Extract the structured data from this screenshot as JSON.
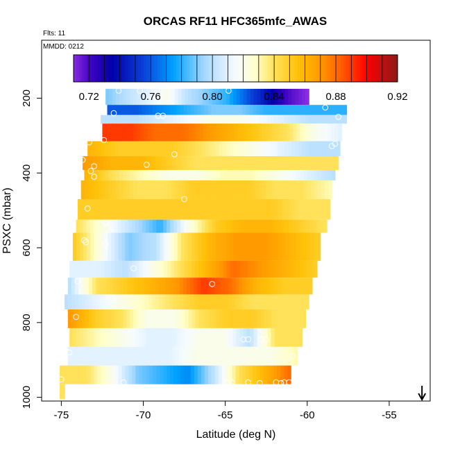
{
  "chart_data": {
    "type": "heatmap",
    "title": "ORCAS RF11 HFC365mfc_AWAS",
    "subtitle": "Flts: 11",
    "annotation": "MMDD: 0212",
    "xlabel": "Latitude (deg N)",
    "ylabel": "PSXC (mbar)",
    "xlim": [
      -76.2,
      -52.5
    ],
    "ylim": [
      1010,
      45
    ],
    "y_reversed": true,
    "x_ticks": [
      -75,
      -70,
      -65,
      -60,
      -55
    ],
    "x_tick_labels": [
      "-75",
      "-70",
      "-65",
      "-60",
      "-55"
    ],
    "y_ticks": [
      200,
      400,
      600,
      800,
      1000
    ],
    "y_tick_labels": [
      "200",
      "400",
      "600",
      "800",
      "1000"
    ],
    "colorbar": {
      "range": [
        0.71,
        0.92
      ],
      "ticks": [
        0.72,
        0.76,
        0.8,
        0.84,
        0.88,
        0.92
      ],
      "tick_labels": [
        "0.72",
        "0.76",
        "0.80",
        "0.84",
        "0.88",
        "0.92"
      ],
      "stops": [
        {
          "v": 0.71,
          "color": "#8a2be2"
        },
        {
          "v": 0.722,
          "color": "#3a00c0"
        },
        {
          "v": 0.735,
          "color": "#0000a8"
        },
        {
          "v": 0.755,
          "color": "#0a3fd8"
        },
        {
          "v": 0.775,
          "color": "#00a2ff"
        },
        {
          "v": 0.795,
          "color": "#a8d8ff"
        },
        {
          "v": 0.815,
          "color": "#f6fbff"
        },
        {
          "v": 0.828,
          "color": "#ffffc8"
        },
        {
          "v": 0.84,
          "color": "#ffe25a"
        },
        {
          "v": 0.855,
          "color": "#ffc20a"
        },
        {
          "v": 0.87,
          "color": "#ff9a00"
        },
        {
          "v": 0.885,
          "color": "#ff5500"
        },
        {
          "v": 0.9,
          "color": "#ff0000"
        },
        {
          "v": 0.92,
          "color": "#8b1a1a"
        }
      ]
    },
    "bands": [
      {
        "p0": 175,
        "p1": 218,
        "lat0": -72.3,
        "lat1": -59.9,
        "values": [
          0.79,
          0.8,
          0.81,
          0.82,
          0.8,
          0.79,
          0.78,
          0.76,
          0.74,
          0.72,
          0.71
        ]
      },
      {
        "p0": 218,
        "p1": 245,
        "lat0": -72.2,
        "lat1": -57.6,
        "values": [
          0.76,
          0.76,
          0.77,
          0.78,
          0.79,
          0.79,
          0.78,
          0.78,
          0.78,
          0.78
        ]
      },
      {
        "p0": 245,
        "p1": 268,
        "lat0": -72.6,
        "lat1": -57.6,
        "values": [
          0.8,
          0.8,
          0.81,
          0.82,
          0.82,
          0.81,
          0.8,
          0.8
        ]
      },
      {
        "p0": 268,
        "p1": 315,
        "lat0": -72.5,
        "lat1": -57.9,
        "values": [
          0.89,
          0.89,
          0.88,
          0.88,
          0.87,
          0.86,
          0.85,
          0.84,
          0.82,
          0.81
        ]
      },
      {
        "p0": 315,
        "p1": 355,
        "lat0": -73.4,
        "lat1": -58.0,
        "values": [
          0.86,
          0.85,
          0.85,
          0.85,
          0.84,
          0.83,
          0.82,
          0.81,
          0.8,
          0.8
        ]
      },
      {
        "p0": 355,
        "p1": 392,
        "lat0": -73.7,
        "lat1": -58.1,
        "values": [
          0.87,
          0.86,
          0.86,
          0.85,
          0.84,
          0.84,
          0.84,
          0.84,
          0.84,
          0.84
        ]
      },
      {
        "p0": 392,
        "p1": 420,
        "lat0": -73.6,
        "lat1": -58.3,
        "values": [
          0.86,
          0.84,
          0.83,
          0.82,
          0.82,
          0.83,
          0.83,
          0.82,
          0.81,
          0.8
        ]
      },
      {
        "p0": 420,
        "p1": 470,
        "lat0": -73.8,
        "lat1": -58.5,
        "values": [
          0.86,
          0.85,
          0.84,
          0.84,
          0.85,
          0.85,
          0.85,
          0.84,
          0.84,
          0.83
        ]
      },
      {
        "p0": 470,
        "p1": 525,
        "lat0": -74.0,
        "lat1": -58.6,
        "values": [
          0.85,
          0.85,
          0.85,
          0.85,
          0.85,
          0.85,
          0.85,
          0.85,
          0.84,
          0.84
        ]
      },
      {
        "p0": 525,
        "p1": 560,
        "lat0": -74.1,
        "lat1": -58.8,
        "values": [
          0.84,
          0.82,
          0.8,
          0.78,
          0.82,
          0.85,
          0.86,
          0.86,
          0.85,
          0.84
        ]
      },
      {
        "p0": 560,
        "p1": 635,
        "lat0": -74.3,
        "lat1": -59.2,
        "values": [
          0.85,
          0.82,
          0.79,
          0.8,
          0.84,
          0.86,
          0.87,
          0.87,
          0.86,
          0.85
        ]
      },
      {
        "p0": 635,
        "p1": 680,
        "lat0": -74.5,
        "lat1": -59.4,
        "values": [
          0.81,
          0.81,
          0.8,
          0.82,
          0.84,
          0.86,
          0.88,
          0.87,
          0.86,
          0.85
        ]
      },
      {
        "p0": 680,
        "p1": 725,
        "lat0": -74.6,
        "lat1": -59.7,
        "values": [
          0.8,
          0.84,
          0.85,
          0.86,
          0.87,
          0.89,
          0.88,
          0.86,
          0.85,
          0.85
        ]
      },
      {
        "p0": 725,
        "p1": 765,
        "lat0": -74.8,
        "lat1": -59.9,
        "values": [
          0.8,
          0.81,
          0.82,
          0.83,
          0.84,
          0.85,
          0.85,
          0.84,
          0.84,
          0.84
        ]
      },
      {
        "p0": 765,
        "p1": 815,
        "lat0": -74.6,
        "lat1": -60.1,
        "values": [
          0.87,
          0.85,
          0.84,
          0.82,
          0.82,
          0.84,
          0.85,
          0.85,
          0.84,
          0.84
        ]
      },
      {
        "p0": 815,
        "p1": 865,
        "lat0": -74.5,
        "lat1": -60.3,
        "values": [
          0.84,
          0.83,
          0.82,
          0.81,
          0.81,
          0.82,
          0.82,
          0.8,
          0.84,
          0.84
        ]
      },
      {
        "p0": 865,
        "p1": 915,
        "lat0": -74.6,
        "lat1": -60.6,
        "values": [
          0.81,
          0.81,
          0.81,
          0.81,
          0.81,
          0.82,
          0.82,
          0.82,
          0.82,
          0.83
        ]
      },
      {
        "p0": 915,
        "p1": 965,
        "lat0": -75.1,
        "lat1": -61.0,
        "values": [
          0.84,
          0.84,
          0.82,
          0.79,
          0.78,
          0.77,
          0.8,
          0.84,
          0.86,
          0.88
        ]
      },
      {
        "p0": 965,
        "p1": 1005,
        "lat0": -75.1,
        "lat1": -74.8,
        "values": [
          0.84
        ]
      }
    ],
    "points": [
      {
        "x": -71.5,
        "y": 180
      },
      {
        "x": -70.2,
        "y": 180
      },
      {
        "x": -64.8,
        "y": 180
      },
      {
        "x": -59.6,
        "y": 190
      },
      {
        "x": -59.2,
        "y": 190
      },
      {
        "x": -57.9,
        "y": 192
      },
      {
        "x": -57.5,
        "y": 190
      },
      {
        "x": -71.8,
        "y": 240
      },
      {
        "x": -69.1,
        "y": 247
      },
      {
        "x": -68.8,
        "y": 247
      },
      {
        "x": -58.9,
        "y": 225
      },
      {
        "x": -58.1,
        "y": 250
      },
      {
        "x": -72.4,
        "y": 312
      },
      {
        "x": -73.3,
        "y": 318
      },
      {
        "x": -58.5,
        "y": 328
      },
      {
        "x": -58.3,
        "y": 322
      },
      {
        "x": -68.1,
        "y": 350
      },
      {
        "x": -73.7,
        "y": 365
      },
      {
        "x": -73.0,
        "y": 382
      },
      {
        "x": -69.8,
        "y": 378
      },
      {
        "x": -73.2,
        "y": 395
      },
      {
        "x": -73.0,
        "y": 410
      },
      {
        "x": -67.5,
        "y": 470
      },
      {
        "x": -73.4,
        "y": 495
      },
      {
        "x": -72.3,
        "y": 533
      },
      {
        "x": -73.6,
        "y": 580
      },
      {
        "x": -73.5,
        "y": 585
      },
      {
        "x": -72.3,
        "y": 590
      },
      {
        "x": -70.6,
        "y": 655
      },
      {
        "x": -74.0,
        "y": 690
      },
      {
        "x": -65.8,
        "y": 697
      },
      {
        "x": -71.9,
        "y": 735
      },
      {
        "x": -74.1,
        "y": 785
      },
      {
        "x": -63.9,
        "y": 845
      },
      {
        "x": -63.6,
        "y": 845
      },
      {
        "x": -62.8,
        "y": 845
      },
      {
        "x": -62.5,
        "y": 845
      },
      {
        "x": -60.9,
        "y": 890
      },
      {
        "x": -74.5,
        "y": 880
      },
      {
        "x": -75.0,
        "y": 952
      },
      {
        "x": -71.2,
        "y": 960
      },
      {
        "x": -64.9,
        "y": 960
      },
      {
        "x": -64.6,
        "y": 960
      },
      {
        "x": -63.6,
        "y": 960
      },
      {
        "x": -62.9,
        "y": 962
      },
      {
        "x": -61.9,
        "y": 960
      },
      {
        "x": -61.6,
        "y": 962
      },
      {
        "x": -61.4,
        "y": 960
      },
      {
        "x": -61.1,
        "y": 960
      }
    ],
    "arrow_marker": {
      "x": -53.0
    }
  }
}
